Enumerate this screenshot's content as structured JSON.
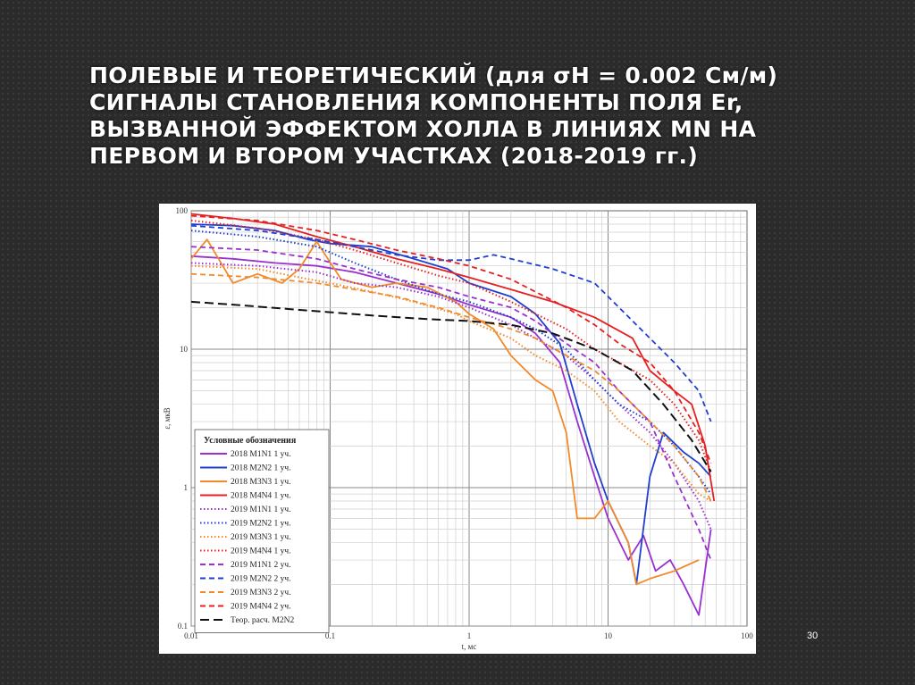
{
  "slide": {
    "title_lines": [
      "ПОЛЕВЫЕ И ТЕОРЕТИЧЕСКИЙ (для σH = 0.002 См/м)",
      "СИГНАЛЫ СТАНОВЛЕНИЯ КОМПОНЕНТЫ ПОЛЯ Er,",
      "ВЫЗВАННОЙ ЭФФЕКТОМ ХОЛЛА В ЛИНИЯХ MN НА",
      "ПЕРВОМ И ВТОРОМ УЧАСТКАХ (2018-2019 гг.)"
    ],
    "page_number": "30"
  },
  "chart_data": {
    "type": "line",
    "xscale": "log",
    "yscale": "log",
    "xlim": [
      0.01,
      100
    ],
    "ylim": [
      0.1,
      100
    ],
    "xlabel": "t, мс",
    "ylabel": "ε, мкВ",
    "x_tick_labels": [
      "0.01",
      "0.1",
      "1",
      "10",
      "100"
    ],
    "y_tick_labels": [
      "100",
      "10",
      "1",
      "0.1"
    ],
    "grid": true,
    "legend": {
      "title": "Условные обозначения",
      "position": "bottom-left"
    },
    "series": [
      {
        "name": "2018 M1N1 1 уч.",
        "color": "#9b30d0",
        "dash": "solid",
        "points": [
          [
            0.01,
            47
          ],
          [
            0.02,
            45
          ],
          [
            0.04,
            42
          ],
          [
            0.08,
            40
          ],
          [
            0.15,
            36
          ],
          [
            0.3,
            30
          ],
          [
            0.6,
            25
          ],
          [
            1.0,
            21
          ],
          [
            2.0,
            17
          ],
          [
            3.0,
            13
          ],
          [
            4.5,
            8
          ],
          [
            6,
            3
          ],
          [
            8,
            1.2
          ],
          [
            10,
            0.6
          ],
          [
            14,
            0.3
          ],
          [
            18,
            0.45
          ],
          [
            22,
            0.25
          ],
          [
            28,
            0.3
          ],
          [
            35,
            0.2
          ],
          [
            45,
            0.12
          ],
          [
            55,
            0.5
          ]
        ]
      },
      {
        "name": "2018 M2N2 1 уч.",
        "color": "#1f3fcf",
        "dash": "solid",
        "points": [
          [
            0.01,
            80
          ],
          [
            0.02,
            78
          ],
          [
            0.04,
            72
          ],
          [
            0.07,
            62
          ],
          [
            0.1,
            58
          ],
          [
            0.2,
            55
          ],
          [
            0.4,
            45
          ],
          [
            0.7,
            38
          ],
          [
            1.0,
            30
          ],
          [
            2.0,
            24
          ],
          [
            3.0,
            18
          ],
          [
            4.5,
            11
          ],
          [
            6,
            4
          ],
          [
            8,
            1.5
          ],
          [
            10,
            0.8
          ],
          [
            14,
            0.4
          ],
          [
            16,
            0.2
          ],
          [
            20,
            1.2
          ],
          [
            25,
            2.5
          ],
          [
            35,
            1.8
          ],
          [
            45,
            1.5
          ],
          [
            55,
            1.2
          ]
        ]
      },
      {
        "name": "2018 M3N3 1 уч.",
        "color": "#f28a2a",
        "dash": "solid",
        "points": [
          [
            0.01,
            45
          ],
          [
            0.013,
            62
          ],
          [
            0.02,
            30
          ],
          [
            0.03,
            35
          ],
          [
            0.045,
            30
          ],
          [
            0.06,
            38
          ],
          [
            0.08,
            60
          ],
          [
            0.12,
            32
          ],
          [
            0.2,
            28
          ],
          [
            0.3,
            30
          ],
          [
            0.5,
            28
          ],
          [
            0.8,
            22
          ],
          [
            1.0,
            18
          ],
          [
            1.5,
            14
          ],
          [
            2,
            9
          ],
          [
            3,
            6
          ],
          [
            4,
            5
          ],
          [
            5,
            2.5
          ],
          [
            6,
            0.6
          ],
          [
            8,
            0.6
          ],
          [
            10,
            0.8
          ],
          [
            14,
            0.4
          ],
          [
            16,
            0.2
          ],
          [
            20,
            0.22
          ],
          [
            30,
            0.25
          ],
          [
            45,
            0.3
          ]
        ]
      },
      {
        "name": "2018 M4N4 1 уч.",
        "color": "#e62020",
        "dash": "solid",
        "points": [
          [
            0.01,
            95
          ],
          [
            0.02,
            88
          ],
          [
            0.04,
            80
          ],
          [
            0.08,
            65
          ],
          [
            0.15,
            55
          ],
          [
            0.3,
            45
          ],
          [
            0.6,
            38
          ],
          [
            1.0,
            33
          ],
          [
            2.0,
            27
          ],
          [
            4.0,
            22
          ],
          [
            8,
            17
          ],
          [
            15,
            12
          ],
          [
            20,
            7
          ],
          [
            30,
            5
          ],
          [
            40,
            4
          ],
          [
            50,
            2
          ],
          [
            58,
            0.8
          ]
        ]
      },
      {
        "name": "2019 M1N1 1 уч.",
        "color": "#9b30d0",
        "dash": "dotted",
        "points": [
          [
            0.01,
            42
          ],
          [
            0.03,
            40
          ],
          [
            0.08,
            36
          ],
          [
            0.15,
            30
          ],
          [
            0.3,
            28
          ],
          [
            0.6,
            24
          ],
          [
            1.0,
            20
          ],
          [
            2.0,
            15
          ],
          [
            3.0,
            12
          ],
          [
            5,
            9
          ],
          [
            8,
            6
          ],
          [
            12,
            4
          ],
          [
            20,
            2.5
          ],
          [
            30,
            1.5
          ],
          [
            45,
            0.8
          ],
          [
            55,
            0.5
          ]
        ]
      },
      {
        "name": "2019 M2N2 1 уч.",
        "color": "#1f3fcf",
        "dash": "dotted",
        "points": [
          [
            0.01,
            72
          ],
          [
            0.03,
            65
          ],
          [
            0.08,
            55
          ],
          [
            0.15,
            42
          ],
          [
            0.3,
            32
          ],
          [
            0.6,
            25
          ],
          [
            1.0,
            22
          ],
          [
            2.0,
            17
          ],
          [
            3.0,
            14
          ],
          [
            5,
            10
          ],
          [
            8,
            6
          ],
          [
            12,
            4
          ],
          [
            20,
            3
          ],
          [
            30,
            2
          ],
          [
            45,
            1.2
          ],
          [
            55,
            0.9
          ]
        ]
      },
      {
        "name": "2019 M3N3 1 уч.",
        "color": "#f28a2a",
        "dash": "dotted",
        "points": [
          [
            0.01,
            40
          ],
          [
            0.03,
            38
          ],
          [
            0.06,
            33
          ],
          [
            0.1,
            30
          ],
          [
            0.2,
            26
          ],
          [
            0.4,
            22
          ],
          [
            0.8,
            18
          ],
          [
            1.0,
            16
          ],
          [
            2.0,
            12
          ],
          [
            3.0,
            9
          ],
          [
            5,
            7
          ],
          [
            8,
            5
          ],
          [
            12,
            3
          ],
          [
            20,
            2
          ],
          [
            30,
            1.5
          ],
          [
            45,
            0.9
          ],
          [
            55,
            0.8
          ]
        ]
      },
      {
        "name": "2019 M4N4 1 уч.",
        "color": "#e62020",
        "dash": "dotted",
        "points": [
          [
            0.01,
            85
          ],
          [
            0.03,
            75
          ],
          [
            0.08,
            62
          ],
          [
            0.15,
            52
          ],
          [
            0.3,
            42
          ],
          [
            0.6,
            34
          ],
          [
            1.0,
            30
          ],
          [
            2.0,
            22
          ],
          [
            3.0,
            18
          ],
          [
            5,
            14
          ],
          [
            8,
            10
          ],
          [
            12,
            8
          ],
          [
            20,
            6
          ],
          [
            30,
            4
          ],
          [
            45,
            2.2
          ],
          [
            55,
            1.3
          ]
        ]
      },
      {
        "name": "2019 M1N1 2 уч.",
        "color": "#9b30d0",
        "dash": "dashed",
        "points": [
          [
            0.01,
            55
          ],
          [
            0.03,
            52
          ],
          [
            0.08,
            45
          ],
          [
            0.15,
            38
          ],
          [
            0.3,
            32
          ],
          [
            0.6,
            28
          ],
          [
            1.0,
            24
          ],
          [
            2.0,
            20
          ],
          [
            3.0,
            16
          ],
          [
            5,
            11
          ],
          [
            8,
            8
          ],
          [
            12,
            5
          ],
          [
            20,
            3
          ],
          [
            30,
            1.2
          ],
          [
            45,
            0.5
          ],
          [
            55,
            0.3
          ]
        ]
      },
      {
        "name": "2019 M2N2 2 уч.",
        "color": "#1f3fcf",
        "dash": "dashed",
        "points": [
          [
            0.01,
            78
          ],
          [
            0.03,
            72
          ],
          [
            0.08,
            62
          ],
          [
            0.15,
            55
          ],
          [
            0.3,
            48
          ],
          [
            0.6,
            44
          ],
          [
            1.0,
            44
          ],
          [
            1.5,
            48
          ],
          [
            2.0,
            45
          ],
          [
            4.0,
            38
          ],
          [
            8,
            30
          ],
          [
            12,
            20
          ],
          [
            20,
            12
          ],
          [
            30,
            8
          ],
          [
            45,
            5
          ],
          [
            55,
            3
          ]
        ]
      },
      {
        "name": "2019 M3N3 2 уч.",
        "color": "#f28a2a",
        "dash": "dashed",
        "points": [
          [
            0.01,
            35
          ],
          [
            0.03,
            33
          ],
          [
            0.08,
            30
          ],
          [
            0.15,
            27
          ],
          [
            0.3,
            24
          ],
          [
            0.6,
            20
          ],
          [
            1.0,
            17
          ],
          [
            2.0,
            14
          ],
          [
            3.0,
            12
          ],
          [
            5,
            9
          ],
          [
            8,
            7
          ],
          [
            12,
            5
          ],
          [
            20,
            3
          ],
          [
            30,
            2
          ],
          [
            45,
            1.2
          ],
          [
            55,
            0.8
          ]
        ]
      },
      {
        "name": "2019 M4N4 2 уч.",
        "color": "#e62020",
        "dash": "dashed",
        "points": [
          [
            0.01,
            92
          ],
          [
            0.03,
            85
          ],
          [
            0.08,
            72
          ],
          [
            0.15,
            62
          ],
          [
            0.3,
            52
          ],
          [
            0.6,
            45
          ],
          [
            1.0,
            40
          ],
          [
            2.0,
            32
          ],
          [
            3.0,
            26
          ],
          [
            5,
            20
          ],
          [
            8,
            15
          ],
          [
            12,
            11
          ],
          [
            20,
            8
          ],
          [
            30,
            5
          ],
          [
            45,
            2.5
          ],
          [
            55,
            1.5
          ]
        ]
      },
      {
        "name": "Теор. расч. M2N2",
        "color": "#111111",
        "dash": "longdash",
        "points": [
          [
            0.01,
            22
          ],
          [
            0.02,
            21
          ],
          [
            0.05,
            19.5
          ],
          [
            0.1,
            18.5
          ],
          [
            0.2,
            17.5
          ],
          [
            0.5,
            16.5
          ],
          [
            1.0,
            16
          ],
          [
            2.0,
            15
          ],
          [
            4.0,
            13
          ],
          [
            8,
            10
          ],
          [
            15,
            7
          ],
          [
            25,
            4
          ],
          [
            40,
            2.2
          ],
          [
            55,
            1.3
          ]
        ]
      }
    ]
  }
}
